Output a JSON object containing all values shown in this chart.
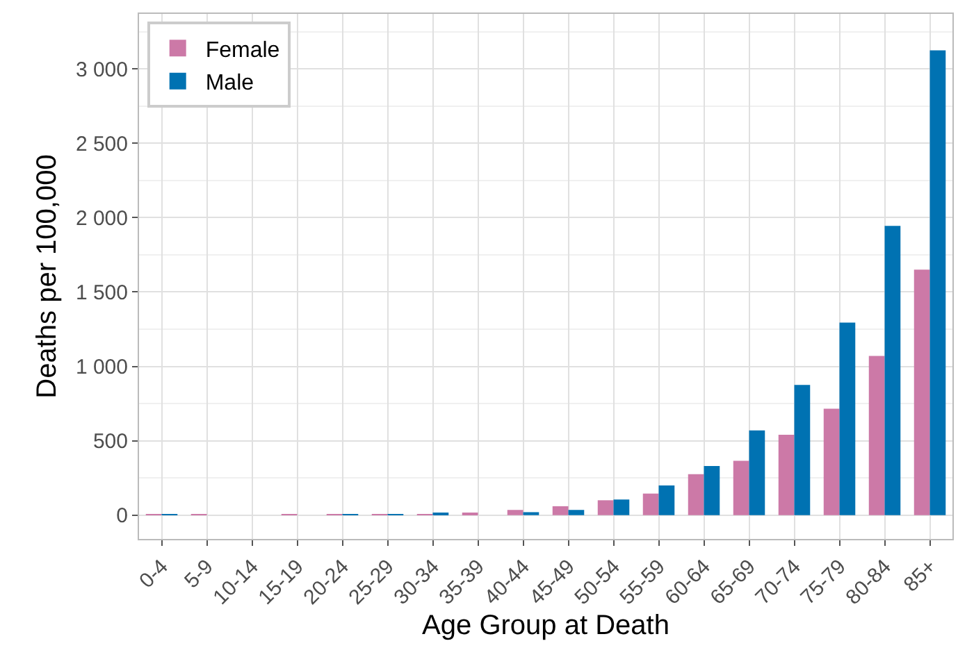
{
  "chart_data": {
    "type": "bar",
    "xlabel": "Age Group at Death",
    "ylabel": "Deaths per 100,000",
    "categories": [
      "0-4",
      "5-9",
      "10-14",
      "15-19",
      "20-24",
      "25-29",
      "30-34",
      "35-39",
      "40-44",
      "45-49",
      "50-54",
      "55-59",
      "60-64",
      "65-69",
      "70-74",
      "75-79",
      "80-84",
      "85+"
    ],
    "series": [
      {
        "name": "Female",
        "color": "#cc79a7",
        "values": [
          5,
          5,
          0,
          5,
          5,
          5,
          5,
          10,
          35,
          60,
          100,
          145,
          275,
          365,
          540,
          715,
          1070,
          1650
        ]
      },
      {
        "name": "Male",
        "color": "#0072b2",
        "values": [
          5,
          0,
          0,
          0,
          5,
          5,
          10,
          0,
          20,
          35,
          105,
          200,
          330,
          570,
          875,
          1295,
          1945,
          3125
        ]
      }
    ],
    "ylim": [
      -160,
      3370
    ],
    "yticks": [
      {
        "value": 0,
        "label": "0"
      },
      {
        "value": 500,
        "label": "500"
      },
      {
        "value": 1000,
        "label": "1 000"
      },
      {
        "value": 1500,
        "label": "1 500"
      },
      {
        "value": 2000,
        "label": "2 000"
      },
      {
        "value": 2500,
        "label": "2 500"
      },
      {
        "value": 3000,
        "label": "3 000"
      }
    ],
    "grid": true,
    "legend": "top left"
  }
}
